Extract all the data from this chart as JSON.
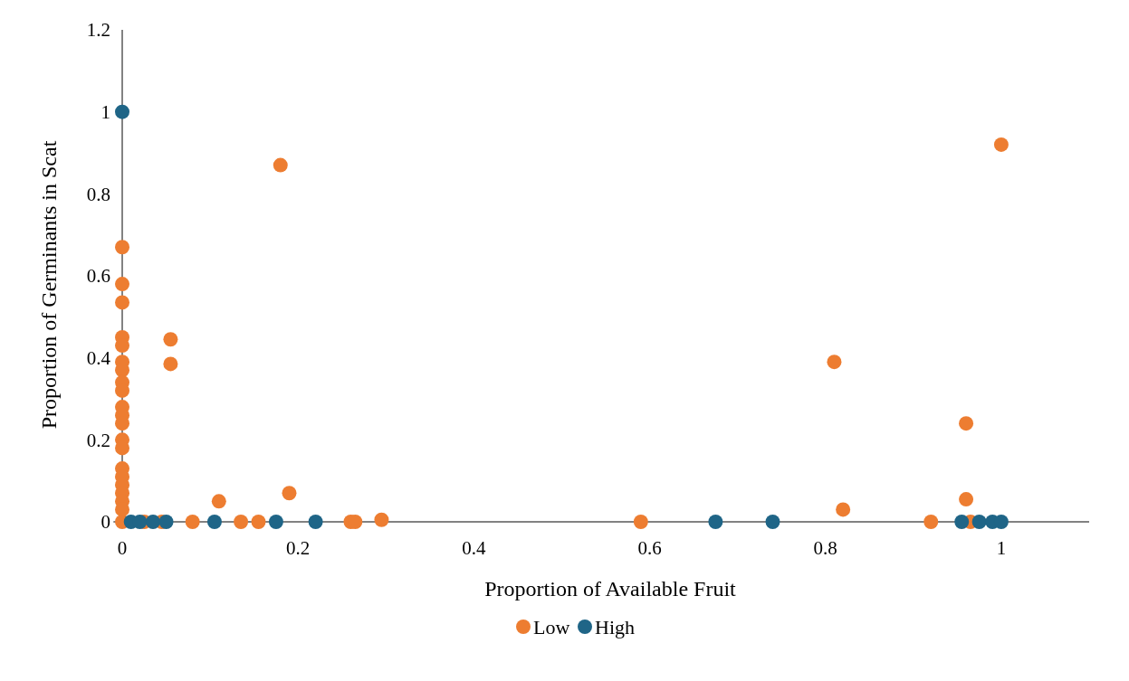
{
  "chart_data": {
    "type": "scatter",
    "xlabel": "Proportion of Available Fruit",
    "ylabel": "Proportion of Germinants in Scat",
    "xlim": [
      -0.01,
      1.1
    ],
    "ylim": [
      0,
      1.2
    ],
    "xticks": [
      0,
      0.2,
      0.4,
      0.6,
      0.8,
      1
    ],
    "yticks": [
      0,
      0.2,
      0.4,
      0.6,
      0.8,
      1,
      1.2
    ],
    "legend": "bottom",
    "marker": "circle",
    "series": [
      {
        "name": "Low",
        "color": "#ed7d31",
        "x": [
          0,
          0,
          0,
          0,
          0,
          0,
          0,
          0,
          0,
          0,
          0,
          0,
          0,
          0,
          0,
          0,
          0,
          0,
          0,
          0,
          0,
          0.025,
          0.045,
          0.055,
          0.055,
          0.18,
          0.11,
          0.19,
          0.08,
          0.135,
          0.155,
          0.26,
          0.265,
          0.295,
          0.59,
          0.81,
          0.82,
          0.92,
          0.96,
          0.96,
          0.965,
          1
        ],
        "values": [
          0.67,
          0.58,
          0.535,
          0.45,
          0.43,
          0.39,
          0.37,
          0.34,
          0.32,
          0.28,
          0.26,
          0.24,
          0.2,
          0.18,
          0.13,
          0.11,
          0.09,
          0.07,
          0.05,
          0.03,
          0,
          0,
          0,
          0.445,
          0.385,
          0.87,
          0.05,
          0.07,
          0,
          0,
          0,
          0,
          0,
          0.005,
          0,
          0.39,
          0.03,
          0,
          0.24,
          0.055,
          0,
          0.92
        ]
      },
      {
        "name": "High",
        "color": "#1f6587",
        "x": [
          0,
          0.01,
          0.02,
          0.035,
          0.05,
          0.105,
          0.175,
          0.22,
          0.675,
          0.74,
          0.955,
          0.975,
          0.99,
          1
        ],
        "values": [
          1,
          0,
          0,
          0,
          0,
          0,
          0,
          0,
          0,
          0,
          0,
          0,
          0,
          0
        ]
      }
    ]
  }
}
